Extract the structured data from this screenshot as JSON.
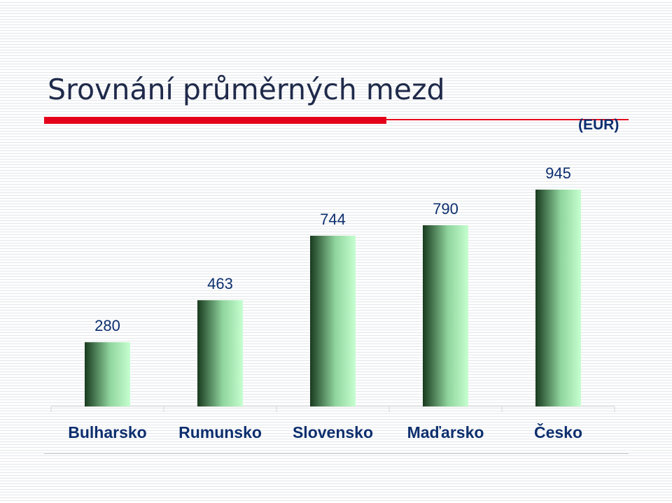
{
  "header": {
    "title": "Srovnání průměrných mezd",
    "unit": "(EUR)"
  },
  "colors": {
    "title": "#1f2a4a",
    "accent": "#e4001b",
    "labels": "#0d2f6e",
    "bar_dark": "#183a1e",
    "bar_light": "#c6ffd0"
  },
  "chart_data": {
    "type": "bar",
    "title": "Srovnání průměrných mezd",
    "unit": "(EUR)",
    "categories": [
      "Bulharsko",
      "Rumunsko",
      "Slovensko",
      "Maďarsko",
      "Česko"
    ],
    "values": [
      280,
      463,
      744,
      790,
      945
    ],
    "data_labels": [
      "280",
      "463",
      "744",
      "790",
      "945"
    ],
    "ylim": [
      0,
      1000
    ],
    "grid": false,
    "legend": "none"
  }
}
